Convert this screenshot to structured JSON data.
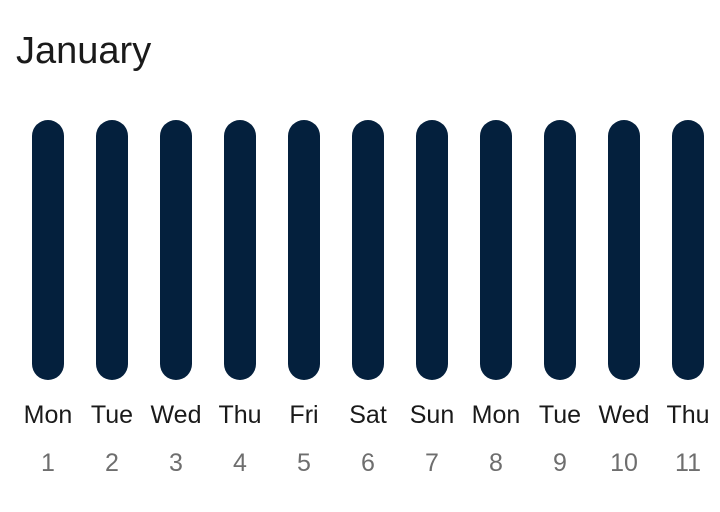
{
  "header": {
    "month_label": "January"
  },
  "colors": {
    "bar": "#04203d"
  },
  "days": [
    {
      "weekday": "Mon",
      "date": "1"
    },
    {
      "weekday": "Tue",
      "date": "2"
    },
    {
      "weekday": "Wed",
      "date": "3"
    },
    {
      "weekday": "Thu",
      "date": "4"
    },
    {
      "weekday": "Fri",
      "date": "5"
    },
    {
      "weekday": "Sat",
      "date": "6"
    },
    {
      "weekday": "Sun",
      "date": "7"
    },
    {
      "weekday": "Mon",
      "date": "8"
    },
    {
      "weekday": "Tue",
      "date": "9"
    },
    {
      "weekday": "Wed",
      "date": "10"
    },
    {
      "weekday": "Thu",
      "date": "11"
    }
  ]
}
